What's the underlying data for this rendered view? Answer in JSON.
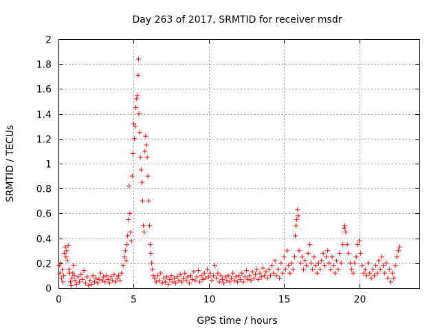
{
  "chart_data": {
    "type": "scatter",
    "title": "Day 263 of 2017, SRMTID for receiver msdr",
    "xlabel": "GPS time / hours",
    "ylabel": "SRMTID / TECUs",
    "xlim": [
      0,
      24
    ],
    "ylim": [
      0,
      2
    ],
    "xticks": [
      0,
      5,
      10,
      15,
      20
    ],
    "xtick_labels": [
      "0",
      "5",
      "10",
      "15",
      "20"
    ],
    "yticks": [
      0,
      0.2,
      0.4,
      0.6,
      0.8,
      1,
      1.2,
      1.4,
      1.6,
      1.8,
      2
    ],
    "ytick_labels": [
      "0",
      "0.2",
      "0.4",
      "0.6",
      "0.8",
      "1",
      "1.2",
      "1.4",
      "1.6",
      "1.8",
      "2"
    ],
    "grid": true,
    "marker": "plus",
    "color": "#ff0000",
    "series": [
      {
        "name": "SRMTID",
        "points": [
          [
            0.05,
            0.18
          ],
          [
            0.1,
            0.12
          ],
          [
            0.15,
            0.2
          ],
          [
            0.2,
            0.08
          ],
          [
            0.25,
            0.15
          ],
          [
            0.3,
            0.05
          ],
          [
            0.35,
            0.1
          ],
          [
            0.4,
            0.28
          ],
          [
            0.45,
            0.33
          ],
          [
            0.5,
            0.25
          ],
          [
            0.55,
            0.3
          ],
          [
            0.6,
            0.22
          ],
          [
            0.65,
            0.34
          ],
          [
            0.7,
            0.15
          ],
          [
            0.75,
            0.12
          ],
          [
            0.8,
            0.05
          ],
          [
            0.85,
            0.02
          ],
          [
            0.9,
            0.08
          ],
          [
            0.95,
            0.12
          ],
          [
            1.0,
            0.18
          ],
          [
            1.05,
            0.1
          ],
          [
            1.1,
            0.06
          ],
          [
            1.2,
            0.03
          ],
          [
            1.3,
            0.09
          ],
          [
            1.4,
            0.05
          ],
          [
            1.5,
            0.11
          ],
          [
            1.6,
            0.07
          ],
          [
            1.7,
            0.14
          ],
          [
            1.8,
            0.04
          ],
          [
            1.9,
            0.09
          ],
          [
            2.0,
            0.02
          ],
          [
            2.1,
            0.06
          ],
          [
            2.2,
            0.03
          ],
          [
            2.3,
            0.1
          ],
          [
            2.4,
            0.05
          ],
          [
            2.5,
            0.08
          ],
          [
            2.6,
            0.04
          ],
          [
            2.7,
            0.07
          ],
          [
            2.8,
            0.12
          ],
          [
            2.9,
            0.06
          ],
          [
            3.0,
            0.09
          ],
          [
            3.1,
            0.05
          ],
          [
            3.2,
            0.1
          ],
          [
            3.3,
            0.07
          ],
          [
            3.4,
            0.04
          ],
          [
            3.5,
            0.09
          ],
          [
            3.6,
            0.06
          ],
          [
            3.7,
            0.11
          ],
          [
            3.8,
            0.05
          ],
          [
            3.9,
            0.08
          ],
          [
            4.0,
            0.1
          ],
          [
            4.1,
            0.06
          ],
          [
            4.2,
            0.12
          ],
          [
            4.3,
            0.18
          ],
          [
            4.4,
            0.25
          ],
          [
            4.45,
            0.3
          ],
          [
            4.5,
            0.22
          ],
          [
            4.55,
            0.35
          ],
          [
            4.6,
            0.42
          ],
          [
            4.65,
            0.55
          ],
          [
            4.7,
            0.82
          ],
          [
            4.75,
            0.6
          ],
          [
            4.8,
            0.45
          ],
          [
            4.85,
            0.38
          ],
          [
            4.9,
            0.9
          ],
          [
            4.95,
            1.08
          ],
          [
            5.0,
            1.32
          ],
          [
            5.05,
            1.2
          ],
          [
            5.1,
            1.3
          ],
          [
            5.15,
            1.45
          ],
          [
            5.2,
            1.52
          ],
          [
            5.25,
            1.55
          ],
          [
            5.3,
            1.71
          ],
          [
            5.32,
            1.84
          ],
          [
            5.35,
            1.4
          ],
          [
            5.4,
            1.25
          ],
          [
            5.45,
            1.05
          ],
          [
            5.5,
            0.95
          ],
          [
            5.55,
            0.85
          ],
          [
            5.6,
            0.7
          ],
          [
            5.65,
            0.5
          ],
          [
            5.7,
            0.45
          ],
          [
            5.75,
            1.1
          ],
          [
            5.8,
            1.22
          ],
          [
            5.85,
            1.15
          ],
          [
            5.9,
            1.05
          ],
          [
            5.95,
            0.9
          ],
          [
            6.0,
            0.7
          ],
          [
            6.05,
            0.5
          ],
          [
            6.1,
            0.35
          ],
          [
            6.15,
            0.28
          ],
          [
            6.2,
            0.2
          ],
          [
            6.25,
            0.15
          ],
          [
            6.3,
            0.1
          ],
          [
            6.4,
            0.08
          ],
          [
            6.5,
            0.05
          ],
          [
            6.6,
            0.1
          ],
          [
            6.7,
            0.06
          ],
          [
            6.8,
            0.12
          ],
          [
            6.9,
            0.04
          ],
          [
            7.0,
            0.08
          ],
          [
            7.1,
            0.05
          ],
          [
            7.2,
            0.09
          ],
          [
            7.3,
            0.03
          ],
          [
            7.4,
            0.07
          ],
          [
            7.5,
            0.1
          ],
          [
            7.6,
            0.05
          ],
          [
            7.7,
            0.08
          ],
          [
            7.8,
            0.04
          ],
          [
            7.9,
            0.09
          ],
          [
            8.0,
            0.06
          ],
          [
            8.1,
            0.11
          ],
          [
            8.2,
            0.05
          ],
          [
            8.3,
            0.08
          ],
          [
            8.4,
            0.12
          ],
          [
            8.5,
            0.06
          ],
          [
            8.6,
            0.09
          ],
          [
            8.7,
            0.04
          ],
          [
            8.8,
            0.1
          ],
          [
            8.9,
            0.07
          ],
          [
            9.0,
            0.13
          ],
          [
            9.1,
            0.06
          ],
          [
            9.2,
            0.09
          ],
          [
            9.3,
            0.14
          ],
          [
            9.4,
            0.05
          ],
          [
            9.5,
            0.1
          ],
          [
            9.6,
            0.07
          ],
          [
            9.7,
            0.12
          ],
          [
            9.8,
            0.08
          ],
          [
            9.9,
            0.15
          ],
          [
            10.0,
            0.09
          ],
          [
            10.1,
            0.12
          ],
          [
            10.2,
            0.06
          ],
          [
            10.3,
            0.1
          ],
          [
            10.4,
            0.18
          ],
          [
            10.5,
            0.08
          ],
          [
            10.6,
            0.12
          ],
          [
            10.7,
            0.05
          ],
          [
            10.8,
            0.1
          ],
          [
            10.9,
            0.07
          ],
          [
            11.0,
            0.04
          ],
          [
            11.1,
            0.09
          ],
          [
            11.2,
            0.06
          ],
          [
            11.3,
            0.1
          ],
          [
            11.4,
            0.05
          ],
          [
            11.5,
            0.08
          ],
          [
            11.6,
            0.12
          ],
          [
            11.7,
            0.06
          ],
          [
            11.8,
            0.09
          ],
          [
            11.9,
            0.05
          ],
          [
            12.0,
            0.1
          ],
          [
            12.1,
            0.07
          ],
          [
            12.2,
            0.12
          ],
          [
            12.3,
            0.05
          ],
          [
            12.4,
            0.09
          ],
          [
            12.5,
            0.14
          ],
          [
            12.6,
            0.07
          ],
          [
            12.7,
            0.1
          ],
          [
            12.8,
            0.06
          ],
          [
            12.9,
            0.13
          ],
          [
            13.0,
            0.08
          ],
          [
            13.1,
            0.11
          ],
          [
            13.2,
            0.15
          ],
          [
            13.3,
            0.07
          ],
          [
            13.4,
            0.12
          ],
          [
            13.5,
            0.09
          ],
          [
            13.6,
            0.16
          ],
          [
            13.7,
            0.1
          ],
          [
            13.8,
            0.13
          ],
          [
            13.9,
            0.08
          ],
          [
            14.0,
            0.15
          ],
          [
            14.1,
            0.1
          ],
          [
            14.2,
            0.18
          ],
          [
            14.3,
            0.12
          ],
          [
            14.4,
            0.22
          ],
          [
            14.5,
            0.1
          ],
          [
            14.6,
            0.15
          ],
          [
            14.7,
            0.08
          ],
          [
            14.8,
            0.2
          ],
          [
            14.9,
            0.12
          ],
          [
            15.0,
            0.25
          ],
          [
            15.1,
            0.15
          ],
          [
            15.2,
            0.3
          ],
          [
            15.3,
            0.18
          ],
          [
            15.4,
            0.12
          ],
          [
            15.5,
            0.2
          ],
          [
            15.6,
            0.15
          ],
          [
            15.7,
            0.25
          ],
          [
            15.75,
            0.42
          ],
          [
            15.8,
            0.5
          ],
          [
            15.85,
            0.55
          ],
          [
            15.9,
            0.63
          ],
          [
            15.95,
            0.58
          ],
          [
            16.0,
            0.3
          ],
          [
            16.1,
            0.2
          ],
          [
            16.2,
            0.25
          ],
          [
            16.3,
            0.15
          ],
          [
            16.4,
            0.22
          ],
          [
            16.5,
            0.18
          ],
          [
            16.6,
            0.28
          ],
          [
            16.7,
            0.35
          ],
          [
            16.8,
            0.2
          ],
          [
            16.9,
            0.15
          ],
          [
            17.0,
            0.25
          ],
          [
            17.1,
            0.18
          ],
          [
            17.2,
            0.12
          ],
          [
            17.3,
            0.2
          ],
          [
            17.4,
            0.15
          ],
          [
            17.5,
            0.22
          ],
          [
            17.6,
            0.28
          ],
          [
            17.7,
            0.18
          ],
          [
            17.8,
            0.25
          ],
          [
            17.9,
            0.3
          ],
          [
            18.0,
            0.2
          ],
          [
            18.1,
            0.15
          ],
          [
            18.2,
            0.25
          ],
          [
            18.3,
            0.18
          ],
          [
            18.4,
            0.12
          ],
          [
            18.5,
            0.22
          ],
          [
            18.6,
            0.15
          ],
          [
            18.7,
            0.28
          ],
          [
            18.8,
            0.2
          ],
          [
            18.9,
            0.35
          ],
          [
            19.0,
            0.48
          ],
          [
            19.05,
            0.5
          ],
          [
            19.1,
            0.45
          ],
          [
            19.2,
            0.35
          ],
          [
            19.3,
            0.28
          ],
          [
            19.4,
            0.2
          ],
          [
            19.5,
            0.15
          ],
          [
            19.6,
            0.12
          ],
          [
            19.7,
            0.2
          ],
          [
            19.8,
            0.25
          ],
          [
            19.9,
            0.35
          ],
          [
            20.0,
            0.38
          ],
          [
            20.1,
            0.28
          ],
          [
            20.2,
            0.18
          ],
          [
            20.3,
            0.12
          ],
          [
            20.4,
            0.15
          ],
          [
            20.5,
            0.1
          ],
          [
            20.6,
            0.2
          ],
          [
            20.7,
            0.12
          ],
          [
            20.8,
            0.08
          ],
          [
            20.9,
            0.15
          ],
          [
            21.0,
            0.1
          ],
          [
            21.1,
            0.18
          ],
          [
            21.2,
            0.12
          ],
          [
            21.3,
            0.22
          ],
          [
            21.4,
            0.15
          ],
          [
            21.5,
            0.25
          ],
          [
            21.6,
            0.18
          ],
          [
            21.7,
            0.12
          ],
          [
            21.8,
            0.2
          ],
          [
            21.9,
            0.08
          ],
          [
            22.0,
            0.15
          ],
          [
            22.1,
            0.05
          ],
          [
            22.2,
            0.12
          ],
          [
            22.3,
            0.08
          ],
          [
            22.4,
            0.18
          ],
          [
            22.5,
            0.25
          ],
          [
            22.6,
            0.3
          ],
          [
            22.7,
            0.33
          ]
        ]
      }
    ]
  }
}
